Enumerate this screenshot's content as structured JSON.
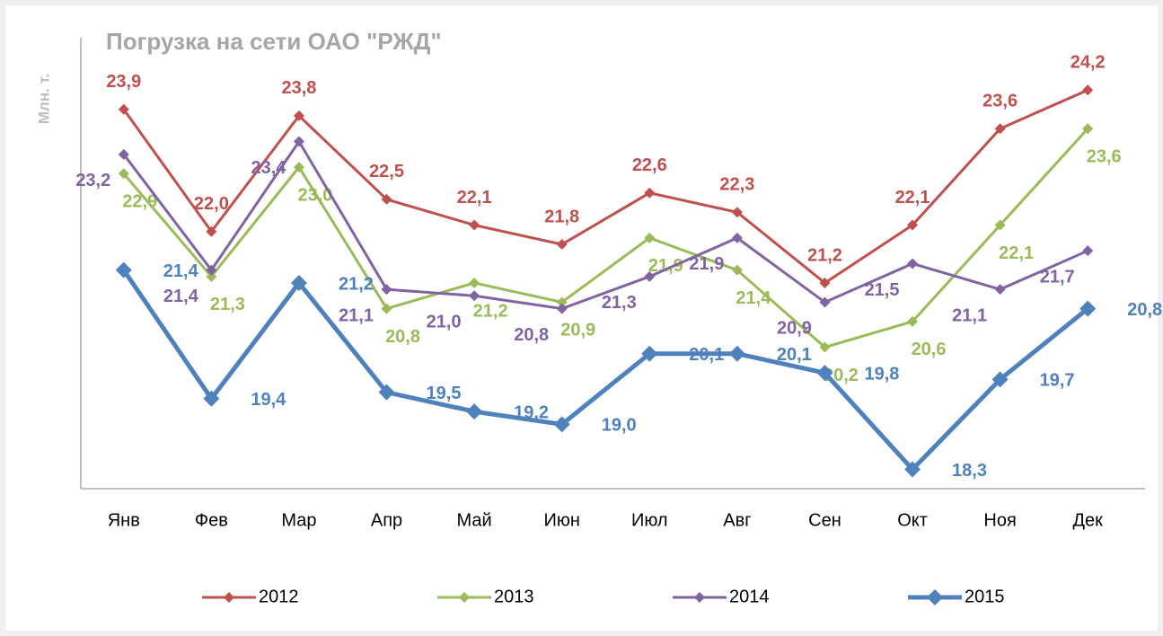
{
  "chart_data": {
    "type": "line",
    "title": "Погрузка на сети ОАО \"РЖД\"",
    "y_label": "Млн. т.",
    "categories": [
      "Янв",
      "Фев",
      "Мар",
      "Апр",
      "Май",
      "Июн",
      "Июл",
      "Авг",
      "Сен",
      "Окт",
      "Ноя",
      "Дек"
    ],
    "ylim": [
      18,
      25
    ],
    "legend": "bottom",
    "series": [
      {
        "name": "2012",
        "color": "#c0504d",
        "values": [
          23.9,
          22.0,
          23.8,
          22.5,
          22.1,
          21.8,
          22.6,
          22.3,
          21.2,
          22.1,
          23.6,
          24.2
        ],
        "value_labels": [
          "23,9",
          "22,0",
          "23,8",
          "22,5",
          "22,1",
          "21,8",
          "22,6",
          "22,3",
          "21,2",
          "22,1",
          "23,6",
          "24,2"
        ]
      },
      {
        "name": "2013",
        "color": "#9bbb59",
        "values": [
          22.9,
          21.3,
          23.0,
          20.8,
          21.2,
          20.9,
          21.9,
          21.4,
          20.2,
          20.6,
          22.1,
          23.6
        ],
        "value_labels": [
          "22,9",
          "21,3",
          "23,0",
          "20,8",
          "21,2",
          "20,9",
          "21,9",
          "21,4",
          "20,2",
          "20,6",
          "22,1",
          "23,6"
        ]
      },
      {
        "name": "2014",
        "color": "#8064a2",
        "values": [
          23.2,
          21.4,
          23.4,
          21.1,
          21.0,
          20.8,
          21.3,
          21.9,
          20.9,
          21.5,
          21.1,
          21.7
        ],
        "value_labels": [
          "23,2",
          "21,4",
          "23,4",
          "21,1",
          "21,0",
          "20,8",
          "21,3",
          "21,9",
          "20,9",
          "21,5",
          "21,1",
          "21,7"
        ]
      },
      {
        "name": "2015",
        "color": "#4f81bd",
        "values": [
          21.4,
          19.4,
          21.2,
          19.5,
          19.2,
          19.0,
          20.1,
          20.1,
          19.8,
          18.3,
          19.7,
          20.8
        ],
        "value_labels": [
          "21,4",
          "19,4",
          "21,2",
          "19,5",
          "19,2",
          "19,0",
          "20,1",
          "20,1",
          "19,8",
          "18,3",
          "19,7",
          "20,8"
        ]
      }
    ]
  }
}
